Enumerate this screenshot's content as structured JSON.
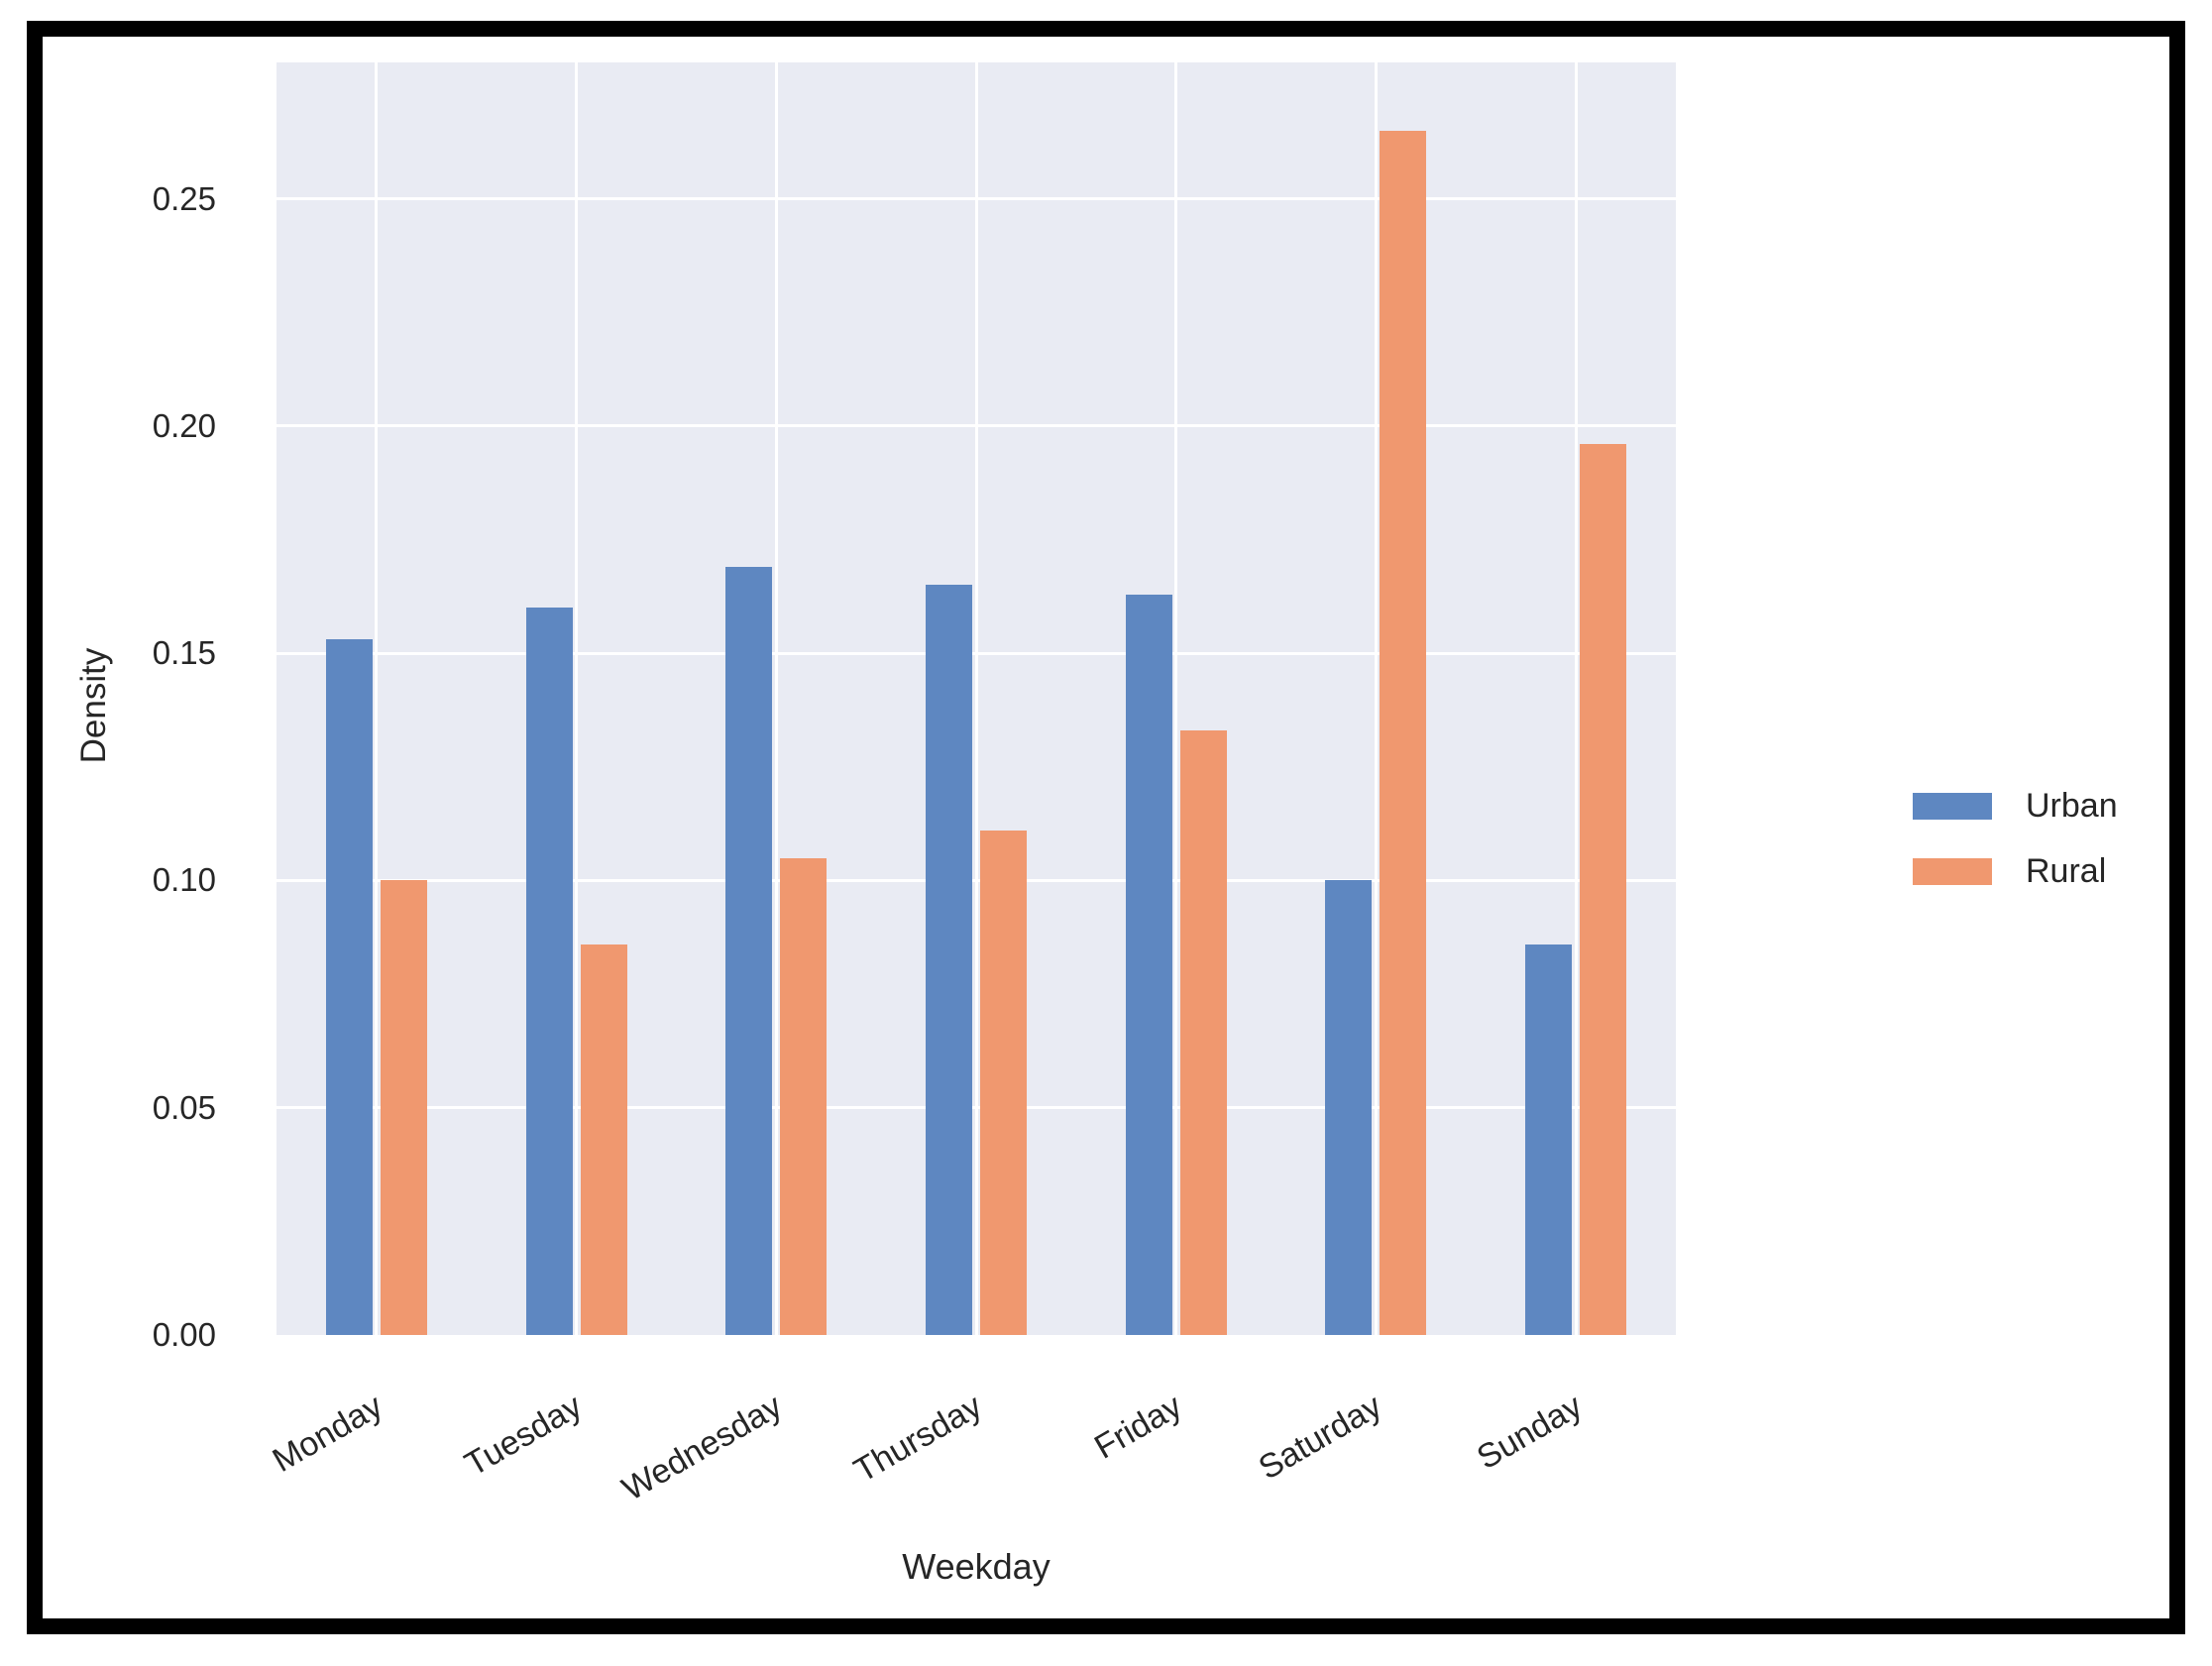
{
  "figure": {
    "frame_color": "#000000",
    "page_background": "#ffffff"
  },
  "chart_data": {
    "type": "bar",
    "title": "",
    "xlabel": "Weekday",
    "ylabel": "Density",
    "categories": [
      "Monday",
      "Tuesday",
      "Wednesday",
      "Thursday",
      "Friday",
      "Saturday",
      "Sunday"
    ],
    "series": [
      {
        "name": "Urban",
        "color": "#5e87c1",
        "values": [
          0.153,
          0.16,
          0.169,
          0.165,
          0.163,
          0.1,
          0.086
        ]
      },
      {
        "name": "Rural",
        "color": "#f0986f",
        "values": [
          0.1,
          0.086,
          0.105,
          0.111,
          0.133,
          0.265,
          0.196
        ]
      }
    ],
    "ylim": [
      0,
      0.28
    ],
    "yticks": [
      {
        "value": 0.0,
        "label": "0.00"
      },
      {
        "value": 0.05,
        "label": "0.05"
      },
      {
        "value": 0.1,
        "label": "0.10"
      },
      {
        "value": 0.15,
        "label": "0.15"
      },
      {
        "value": 0.2,
        "label": "0.20"
      },
      {
        "value": 0.25,
        "label": "0.25"
      }
    ],
    "grid": true,
    "plot_background": "#e9ebf3",
    "grid_color": "#ffffff",
    "tick_text_color": "#262626",
    "legend_position": "right"
  }
}
